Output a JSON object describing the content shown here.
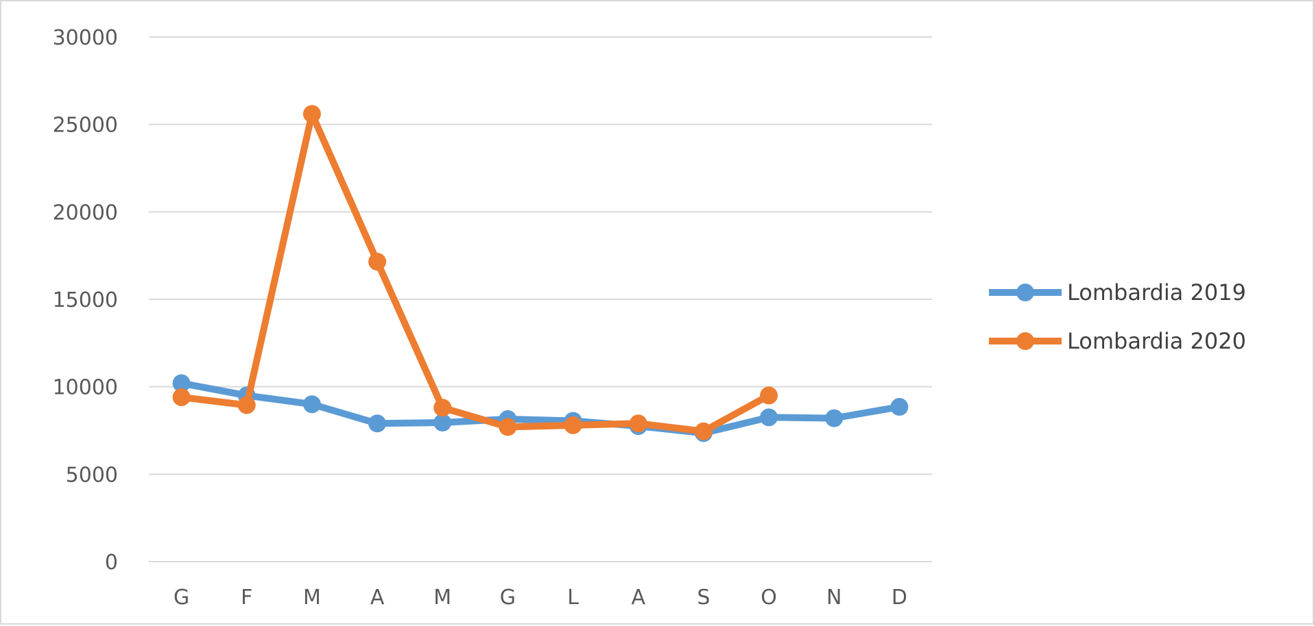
{
  "chart_data": {
    "type": "line",
    "categories": [
      "G",
      "F",
      "M",
      "A",
      "M",
      "G",
      "L",
      "A",
      "S",
      "O",
      "N",
      "D"
    ],
    "ylim": [
      0,
      30000
    ],
    "yticks": [
      0,
      5000,
      10000,
      15000,
      20000,
      25000,
      30000
    ],
    "ytick_labels": [
      "0",
      "5000",
      "10000",
      "15000",
      "20000",
      "25000",
      "30000"
    ],
    "grid": true,
    "legend_position": "right",
    "series": [
      {
        "name": "Lombardia 2019",
        "color": "#5B9BD5",
        "values": [
          10200,
          9500,
          9000,
          7900,
          7950,
          8150,
          8050,
          7750,
          7350,
          8250,
          8200,
          8850
        ]
      },
      {
        "name": "Lombardia 2020",
        "color": "#ED7D31",
        "values": [
          9400,
          8950,
          25600,
          17150,
          8800,
          7700,
          7800,
          7900,
          7450,
          9500,
          null,
          null
        ]
      }
    ]
  }
}
